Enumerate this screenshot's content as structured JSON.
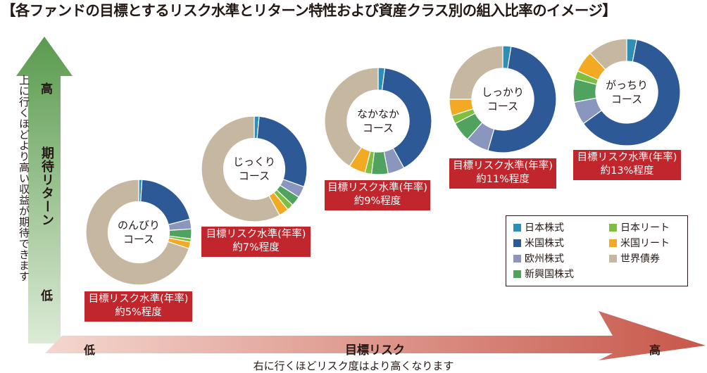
{
  "title": "【各ファンドの目標とするリスク水準とリターン特性および資産クラス別の組入比率のイメージ】",
  "y_axis": {
    "high": "高",
    "label": "期待リターン",
    "low": "低",
    "description": "上に行くほどより高い収益が期待できます"
  },
  "x_axis": {
    "low": "低",
    "label": "目標リスク",
    "high": "高",
    "description": "右に行くほどリスク度はより高くなります"
  },
  "colors": {
    "japan_equity": "#2d8fb8",
    "us_equity": "#2d5a96",
    "eu_equity": "#8a96bd",
    "em_equity": "#4fa35f",
    "japan_reit": "#7dbf3f",
    "us_reit": "#f2aa25",
    "global_bond": "#c6b8a0",
    "target_box": "#c0262c",
    "y_arrow": "#5a9a4e",
    "x_arrow": "#c7574a"
  },
  "legend": [
    {
      "name": "日本株式",
      "color": "#2d8fb8"
    },
    {
      "name": "日本リート",
      "color": "#7dbf3f"
    },
    {
      "name": "米国株式",
      "color": "#2d5a96"
    },
    {
      "name": "米国リート",
      "color": "#f2aa25"
    },
    {
      "name": "欧州株式",
      "color": "#8a96bd"
    },
    {
      "name": "世界債券",
      "color": "#c6b8a0"
    },
    {
      "name": "新興国株式",
      "color": "#4fa35f"
    }
  ],
  "chart_data": {
    "type": "pie",
    "variant": "donut",
    "asset_classes": [
      "日本株式",
      "米国株式",
      "欧州株式",
      "新興国株式",
      "日本リート",
      "米国リート",
      "世界債券"
    ],
    "series": [
      {
        "name": "のんびりコース",
        "target_risk_label": "目標リスク水準(年率)",
        "target_risk": "約5%程度",
        "values": [
          1,
          20,
          3,
          3,
          1,
          2,
          70
        ]
      },
      {
        "name": "じっくりコース",
        "target_risk_label": "目標リスク水準(年率)",
        "target_risk": "約7%程度",
        "values": [
          1.5,
          29,
          3.5,
          3,
          2,
          3,
          58
        ]
      },
      {
        "name": "なかなかコース",
        "target_risk_label": "目標リスク水準(年率)",
        "target_risk": "約9%程度",
        "values": [
          2,
          40,
          5,
          5,
          2,
          5,
          41
        ]
      },
      {
        "name": "しっかりコース",
        "target_risk_label": "目標リスク水準(年率)",
        "target_risk": "約11%程度",
        "values": [
          2.5,
          52,
          7,
          6,
          2.5,
          5,
          25
        ]
      },
      {
        "name": "がっちりコース",
        "target_risk_label": "目標リスク水準(年率)",
        "target_risk": "約13%程度",
        "values": [
          3,
          62,
          7,
          7,
          2.5,
          6.5,
          12
        ]
      }
    ]
  },
  "courses": [
    {
      "line1": "のんびり",
      "line2": "コース",
      "box_line1": "目標リスク水準(年率)",
      "box_line2": "約5%程度"
    },
    {
      "line1": "じっくり",
      "line2": "コース",
      "box_line1": "目標リスク水準(年率)",
      "box_line2": "約7%程度"
    },
    {
      "line1": "なかなか",
      "line2": "コース",
      "box_line1": "目標リスク水準(年率)",
      "box_line2": "約9%程度"
    },
    {
      "line1": "しっかり",
      "line2": "コース",
      "box_line1": "目標リスク水準(年率)",
      "box_line2": "約11%程度"
    },
    {
      "line1": "がっちり",
      "line2": "コース",
      "box_line1": "目標リスク水準(年率)",
      "box_line2": "約13%程度"
    }
  ]
}
